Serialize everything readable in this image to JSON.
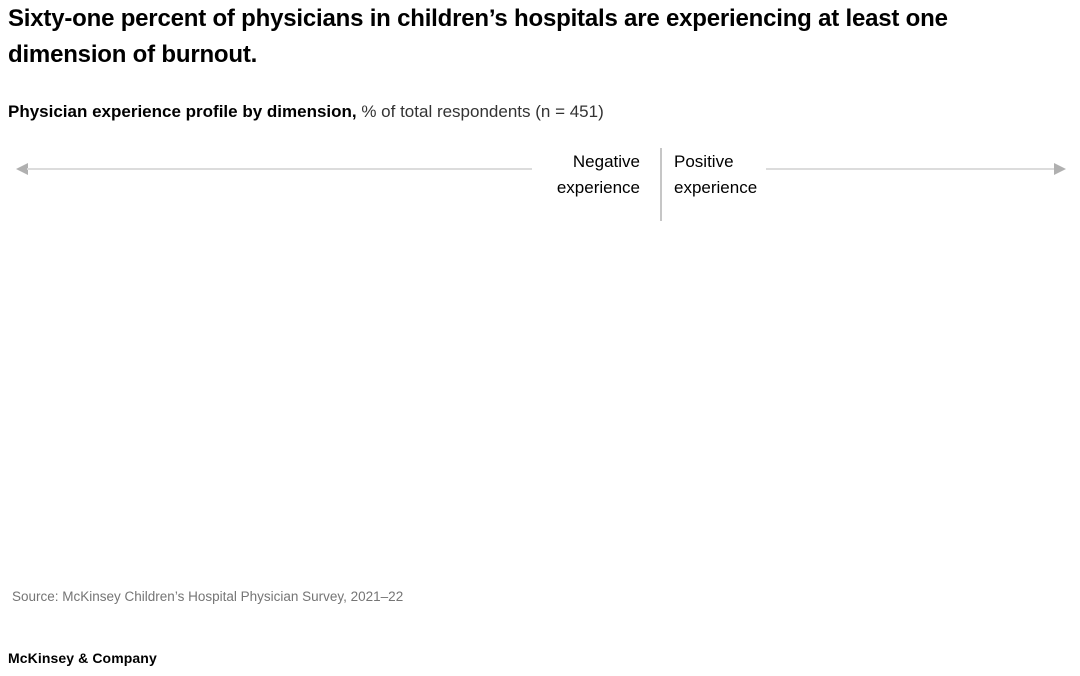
{
  "page": {
    "title": "Sixty-one percent of physicians in children’s hospitals are experiencing at least one dimension of burnout.",
    "subtitle_bold": "Physician experience profile by dimension,",
    "subtitle_rest": " % of total respondents (n = 451)"
  },
  "axis": {
    "negative_label": "Negative experience",
    "positive_label": "Positive experience"
  },
  "chart_data": {
    "type": "bar",
    "title": "Physician experience profile by dimension, % of total respondents (n = 451)",
    "axis_annotations": [
      "Negative experience",
      "Positive experience"
    ],
    "orientation": "horizontal-diverging",
    "categories": [],
    "series": [],
    "legend": false,
    "plot_area_empty": true
  },
  "footer": {
    "source": "Source: McKinsey Children’s Hospital Physician Survey, 2021–22",
    "brand": "McKinsey & Company"
  },
  "colors": {
    "text": "#000000",
    "axis_line": "#dcdcdc",
    "arrowhead": "#b0b0b0",
    "divider": "#c6c6c6",
    "source_text": "#757575"
  }
}
